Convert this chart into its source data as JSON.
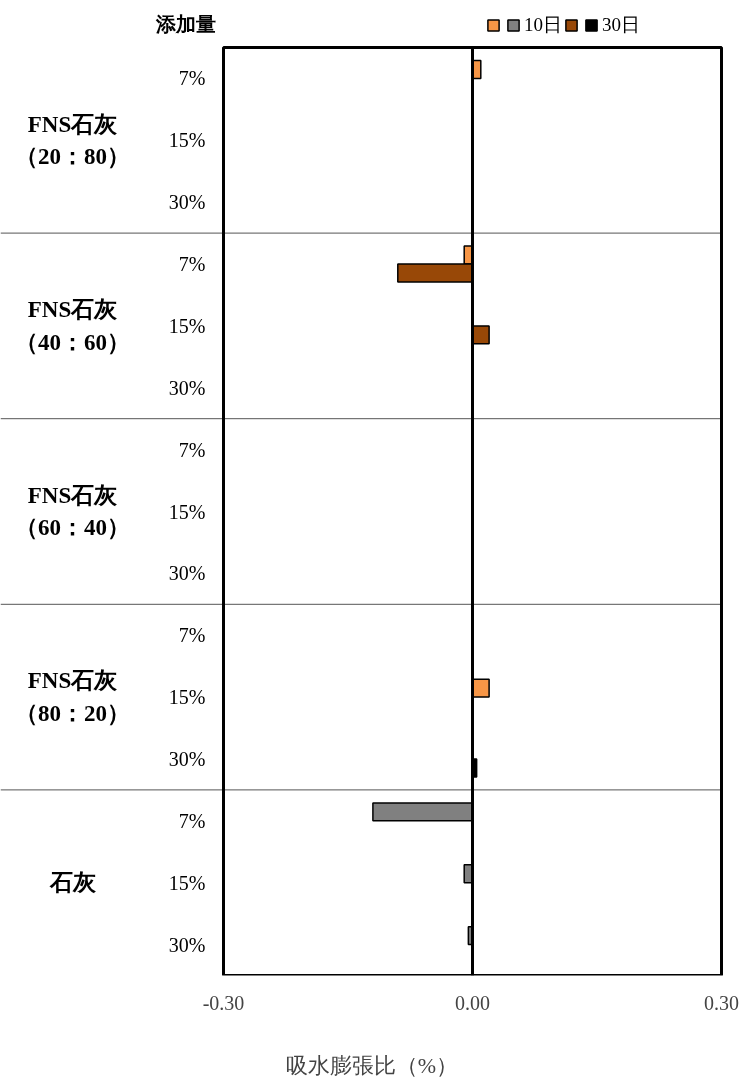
{
  "chart_data": {
    "type": "bar",
    "orientation": "horizontal",
    "ylabel": "添加量",
    "xlabel": "吸水膨張比（%）",
    "categories": [
      "7%",
      "15%",
      "30%",
      "7%",
      "15%",
      "30%",
      "7%",
      "15%",
      "30%",
      "7%",
      "15%",
      "30%",
      "7%",
      "15%",
      "30%"
    ],
    "annotations": [
      "FNS石灰（20：80）",
      "FNS石灰（40：60）",
      "FNS石灰（60：40）",
      "FNS石灰（80：20）",
      "石灰"
    ],
    "series": [
      {
        "name": "10日",
        "colors": [
          "#f79646",
          "#f79646",
          "#f79646",
          "#f79646",
          "#f79646",
          "#f79646",
          "#f79646",
          "#f79646",
          "#f79646",
          "#f79646",
          "#f79646",
          "#f79646",
          "#808080",
          "#808080",
          "#808080"
        ],
        "values": [
          0.01,
          null,
          null,
          -0.01,
          null,
          null,
          null,
          null,
          null,
          null,
          0.02,
          null,
          -0.12,
          -0.01,
          -0.005
        ]
      },
      {
        "name": "30日",
        "colors": [
          "#984807",
          "#984807",
          "#984807",
          "#984807",
          "#984807",
          "#984807",
          "#984807",
          "#984807",
          "#984807",
          "#984807",
          "#984807",
          "#000000",
          "#000000",
          "#000000",
          "#000000"
        ],
        "values": [
          null,
          null,
          null,
          -0.09,
          0.02,
          null,
          null,
          null,
          null,
          null,
          null,
          0.005,
          null,
          null,
          null
        ]
      }
    ],
    "xlim": [
      -0.3,
      0.3
    ],
    "xticks": [
      {
        "value": -0.3,
        "label": "-0.30"
      },
      {
        "value": 0,
        "label": "0.00"
      },
      {
        "value": 0.3,
        "label": "0.30"
      }
    ],
    "ref_lines": [
      {
        "axis": "x",
        "value": 0,
        "color": "#000000"
      }
    ],
    "grid": false,
    "legend": "top right"
  }
}
